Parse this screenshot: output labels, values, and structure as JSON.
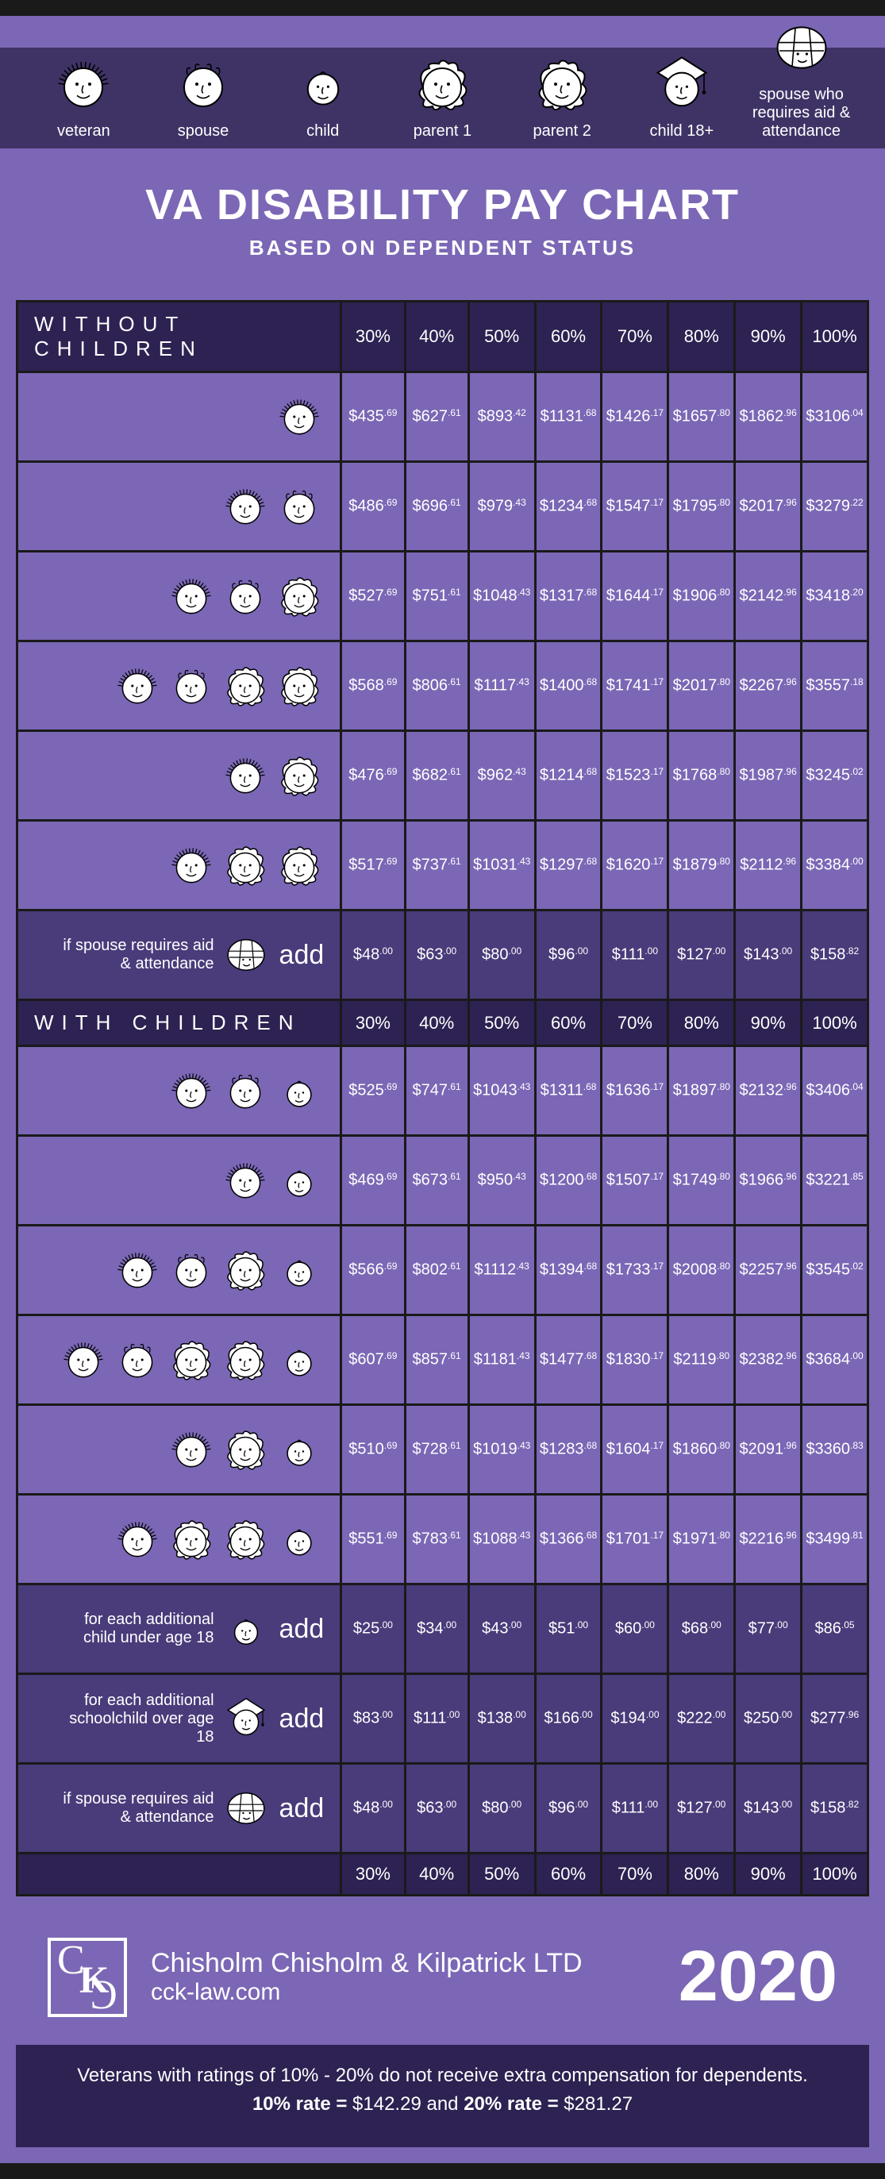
{
  "colors": {
    "page_bg": "#7b67b5",
    "dark_band": "#3f3366",
    "darkest": "#2d2252",
    "add_row": "#4a3b7a",
    "border": "#1a1a1a",
    "text": "#ffffff"
  },
  "legend": {
    "items": [
      {
        "key": "veteran",
        "label": "veteran"
      },
      {
        "key": "spouse",
        "label": "spouse"
      },
      {
        "key": "child",
        "label": "child"
      },
      {
        "key": "parent1",
        "label": "parent 1"
      },
      {
        "key": "parent2",
        "label": "parent 2"
      },
      {
        "key": "child18",
        "label": "child 18+"
      },
      {
        "key": "spouse_aa",
        "label": "spouse who requires aid & attendance"
      }
    ]
  },
  "title": {
    "main": "VA DISABILITY PAY CHART",
    "sub": "BASED ON DEPENDENT STATUS"
  },
  "columns": [
    "30%",
    "40%",
    "50%",
    "60%",
    "70%",
    "80%",
    "90%",
    "100%"
  ],
  "sections": [
    {
      "name": "WITHOUT CHILDREN",
      "rows": [
        {
          "icons": [
            "veteran"
          ],
          "values": [
            [
              "$435",
              ".69"
            ],
            [
              "$627",
              ".61"
            ],
            [
              "$893",
              ".42"
            ],
            [
              "$1131",
              ".68"
            ],
            [
              "$1426",
              ".17"
            ],
            [
              "$1657",
              ".80"
            ],
            [
              "$1862",
              ".96"
            ],
            [
              "$3106",
              ".04"
            ]
          ]
        },
        {
          "icons": [
            "veteran",
            "spouse"
          ],
          "values": [
            [
              "$486",
              ".69"
            ],
            [
              "$696",
              ".61"
            ],
            [
              "$979",
              ".43"
            ],
            [
              "$1234",
              ".68"
            ],
            [
              "$1547",
              ".17"
            ],
            [
              "$1795",
              ".80"
            ],
            [
              "$2017",
              ".96"
            ],
            [
              "$3279",
              ".22"
            ]
          ]
        },
        {
          "icons": [
            "veteran",
            "spouse",
            "parent1"
          ],
          "values": [
            [
              "$527",
              ".69"
            ],
            [
              "$751",
              ".61"
            ],
            [
              "$1048",
              ".43"
            ],
            [
              "$1317",
              ".68"
            ],
            [
              "$1644",
              ".17"
            ],
            [
              "$1906",
              ".80"
            ],
            [
              "$2142",
              ".96"
            ],
            [
              "$3418",
              ".20"
            ]
          ]
        },
        {
          "icons": [
            "veteran",
            "spouse",
            "parent1",
            "parent2"
          ],
          "values": [
            [
              "$568",
              ".69"
            ],
            [
              "$806",
              ".61"
            ],
            [
              "$1117",
              ".43"
            ],
            [
              "$1400",
              ".68"
            ],
            [
              "$1741",
              ".17"
            ],
            [
              "$2017",
              ".80"
            ],
            [
              "$2267",
              ".96"
            ],
            [
              "$3557",
              ".18"
            ]
          ]
        },
        {
          "icons": [
            "veteran",
            "parent1"
          ],
          "values": [
            [
              "$476",
              ".69"
            ],
            [
              "$682",
              ".61"
            ],
            [
              "$962",
              ".43"
            ],
            [
              "$1214",
              ".68"
            ],
            [
              "$1523",
              ".17"
            ],
            [
              "$1768",
              ".80"
            ],
            [
              "$1987",
              ".96"
            ],
            [
              "$3245",
              ".02"
            ]
          ]
        },
        {
          "icons": [
            "veteran",
            "parent1",
            "parent2"
          ],
          "values": [
            [
              "$517",
              ".69"
            ],
            [
              "$737",
              ".61"
            ],
            [
              "$1031",
              ".43"
            ],
            [
              "$1297",
              ".68"
            ],
            [
              "$1620",
              ".17"
            ],
            [
              "$1879",
              ".80"
            ],
            [
              "$2112",
              ".96"
            ],
            [
              "$3384",
              ".00"
            ]
          ]
        },
        {
          "add": true,
          "label": "if spouse requires aid & attendance",
          "icon": "spouse_aa",
          "word": "add",
          "values": [
            [
              "$48",
              ".00"
            ],
            [
              "$63",
              ".00"
            ],
            [
              "$80",
              ".00"
            ],
            [
              "$96",
              ".00"
            ],
            [
              "$111",
              ".00"
            ],
            [
              "$127",
              ".00"
            ],
            [
              "$143",
              ".00"
            ],
            [
              "$158",
              ".82"
            ]
          ]
        }
      ]
    },
    {
      "name": "WITH CHILDREN",
      "rows": [
        {
          "icons": [
            "veteran",
            "spouse",
            "child"
          ],
          "values": [
            [
              "$525",
              ".69"
            ],
            [
              "$747",
              ".61"
            ],
            [
              "$1043",
              ".43"
            ],
            [
              "$1311",
              ".68"
            ],
            [
              "$1636",
              ".17"
            ],
            [
              "$1897",
              ".80"
            ],
            [
              "$2132",
              ".96"
            ],
            [
              "$3406",
              ".04"
            ]
          ]
        },
        {
          "icons": [
            "veteran",
            "child"
          ],
          "values": [
            [
              "$469",
              ".69"
            ],
            [
              "$673",
              ".61"
            ],
            [
              "$950",
              ".43"
            ],
            [
              "$1200",
              ".68"
            ],
            [
              "$1507",
              ".17"
            ],
            [
              "$1749",
              ".80"
            ],
            [
              "$1966",
              ".96"
            ],
            [
              "$3221",
              ".85"
            ]
          ]
        },
        {
          "icons": [
            "veteran",
            "spouse",
            "parent1",
            "child"
          ],
          "values": [
            [
              "$566",
              ".69"
            ],
            [
              "$802",
              ".61"
            ],
            [
              "$1112",
              ".43"
            ],
            [
              "$1394",
              ".68"
            ],
            [
              "$1733",
              ".17"
            ],
            [
              "$2008",
              ".80"
            ],
            [
              "$2257",
              ".96"
            ],
            [
              "$3545",
              ".02"
            ]
          ]
        },
        {
          "icons": [
            "veteran",
            "spouse",
            "parent1",
            "parent2",
            "child"
          ],
          "values": [
            [
              "$607",
              ".69"
            ],
            [
              "$857",
              ".61"
            ],
            [
              "$1181",
              ".43"
            ],
            [
              "$1477",
              ".68"
            ],
            [
              "$1830",
              ".17"
            ],
            [
              "$2119",
              ".80"
            ],
            [
              "$2382",
              ".96"
            ],
            [
              "$3684",
              ".00"
            ]
          ]
        },
        {
          "icons": [
            "veteran",
            "parent1",
            "child"
          ],
          "values": [
            [
              "$510",
              ".69"
            ],
            [
              "$728",
              ".61"
            ],
            [
              "$1019",
              ".43"
            ],
            [
              "$1283",
              ".68"
            ],
            [
              "$1604",
              ".17"
            ],
            [
              "$1860",
              ".80"
            ],
            [
              "$2091",
              ".96"
            ],
            [
              "$3360",
              ".83"
            ]
          ]
        },
        {
          "icons": [
            "veteran",
            "parent1",
            "parent2",
            "child"
          ],
          "values": [
            [
              "$551",
              ".69"
            ],
            [
              "$783",
              ".61"
            ],
            [
              "$1088",
              ".43"
            ],
            [
              "$1366",
              ".68"
            ],
            [
              "$1701",
              ".17"
            ],
            [
              "$1971",
              ".80"
            ],
            [
              "$2216",
              ".96"
            ],
            [
              "$3499",
              ".81"
            ]
          ]
        },
        {
          "add": true,
          "label": "for each additional child under age 18",
          "icon": "child",
          "word": "add",
          "values": [
            [
              "$25",
              ".00"
            ],
            [
              "$34",
              ".00"
            ],
            [
              "$43",
              ".00"
            ],
            [
              "$51",
              ".00"
            ],
            [
              "$60",
              ".00"
            ],
            [
              "$68",
              ".00"
            ],
            [
              "$77",
              ".00"
            ],
            [
              "$86",
              ".05"
            ]
          ]
        },
        {
          "add": true,
          "label": "for each additional schoolchild over age 18",
          "icon": "child18",
          "word": "add",
          "values": [
            [
              "$83",
              ".00"
            ],
            [
              "$111",
              ".00"
            ],
            [
              "$138",
              ".00"
            ],
            [
              "$166",
              ".00"
            ],
            [
              "$194",
              ".00"
            ],
            [
              "$222",
              ".00"
            ],
            [
              "$250",
              ".00"
            ],
            [
              "$277",
              ".96"
            ]
          ]
        },
        {
          "add": true,
          "label": "if spouse requires aid & attendance",
          "icon": "spouse_aa",
          "word": "add",
          "values": [
            [
              "$48",
              ".00"
            ],
            [
              "$63",
              ".00"
            ],
            [
              "$80",
              ".00"
            ],
            [
              "$96",
              ".00"
            ],
            [
              "$111",
              ".00"
            ],
            [
              "$127",
              ".00"
            ],
            [
              "$143",
              ".00"
            ],
            [
              "$158",
              ".82"
            ]
          ]
        }
      ],
      "footer_pcts": true
    }
  ],
  "footer": {
    "firm": "Chisholm Chisholm & Kilpatrick LTD",
    "site": "cck-law.com",
    "year": "2020"
  },
  "bottom_note": {
    "line1": "Veterans with ratings of 10% - 20% do not receive extra compensation for dependents.",
    "rate10_label": "10% rate = ",
    "rate10_val": "$142.29",
    "and": "  and  ",
    "rate20_label": "20% rate = ",
    "rate20_val": "$281.27"
  }
}
